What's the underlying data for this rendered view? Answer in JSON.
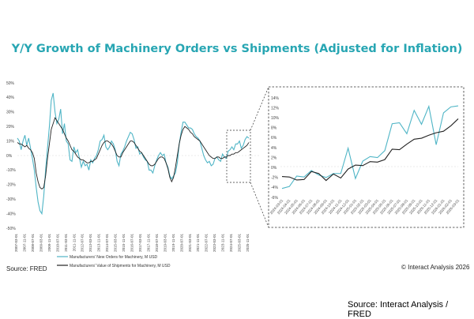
{
  "title": "Y/Y Growth of Machinery Orders vs Shipments (Adjusted for Inflation)",
  "source_left": "Source: FRED",
  "credit": "© Interact Analysis 2026",
  "source_bottom": "Source: Interact Analysis / FRED",
  "colors": {
    "orders": "#4fb5c6",
    "shipments": "#222222",
    "title": "#28a6b3"
  },
  "chart_data": [
    {
      "type": "line",
      "title": "",
      "xlabel": "",
      "ylabel": "",
      "ylim": [
        -50,
        50
      ],
      "yticks": [
        "50%",
        "40%",
        "30%",
        "20%",
        "10%",
        "0%",
        "-10%",
        "-20%",
        "-30%",
        "-40%",
        "-50%"
      ],
      "x_tick_labels": [
        "2007-03-01",
        "2007-11-01",
        "2008-07-01",
        "2009-03-01",
        "2009-11-01",
        "2010-07-01",
        "2011-03-01",
        "2011-11-01",
        "2012-07-01",
        "2013-03-01",
        "2013-11-01",
        "2014-07-01",
        "2015-03-01",
        "2015-11-01",
        "2016-07-01",
        "2017-03-01",
        "2017-11-01",
        "2018-07-01",
        "2019-03-01",
        "2019-11-01",
        "2020-07-01",
        "2021-03-01",
        "2021-11-01",
        "2022-07-01",
        "2023-03-01",
        "2023-11-01",
        "2024-07-01",
        "2025-03-01",
        "2025-11-01"
      ],
      "legend_position": "bottom-left",
      "series": [
        {
          "name": "Manufacturers' New Orders for Machinery, M USD",
          "values": [
            12,
            10,
            4,
            10,
            14,
            7,
            12,
            5,
            -2,
            -10,
            -22,
            -32,
            -38,
            -40,
            -28,
            -10,
            5,
            20,
            38,
            43,
            30,
            22,
            25,
            32,
            15,
            22,
            10,
            8,
            -3,
            -4,
            6,
            2,
            4,
            -2,
            -8,
            -4,
            -7,
            -6,
            -10,
            -3,
            -5,
            -2,
            0,
            4,
            10,
            11,
            14,
            6,
            4,
            6,
            10,
            8,
            4,
            -4,
            -7,
            1,
            3,
            6,
            10,
            13,
            16,
            15,
            11,
            5,
            6,
            1,
            2,
            -1,
            -3,
            -4,
            -10,
            -10,
            -12,
            -7,
            -3,
            0,
            2,
            0,
            1,
            -5,
            -8,
            -14,
            -16,
            -14,
            -12,
            -5,
            8,
            16,
            23,
            23,
            21,
            19,
            19,
            18,
            15,
            13,
            12,
            10,
            5,
            0,
            -3,
            -5,
            -4,
            -7,
            -6,
            -2,
            -1,
            -3,
            -4,
            1,
            -1,
            -2,
            3,
            4,
            6,
            4,
            8,
            8,
            10,
            5,
            7,
            11,
            13,
            12
          ]
        },
        {
          "name": "Manufacturers' Value of Shipments for Machinery, M USD",
          "values": [
            9,
            8,
            8,
            7,
            6,
            7,
            5,
            4,
            2,
            -2,
            -12,
            -18,
            -22,
            -23,
            -22,
            -14,
            -2,
            8,
            18,
            22,
            26,
            24,
            22,
            20,
            18,
            15,
            12,
            10,
            7,
            4,
            3,
            1,
            -1,
            -2,
            -3,
            -3,
            -4,
            -5,
            -5,
            -4,
            -4,
            -3,
            -2,
            1,
            4,
            7,
            9,
            10,
            10,
            9,
            8,
            6,
            3,
            0,
            -1,
            -1,
            2,
            4,
            6,
            8,
            10,
            10,
            9,
            7,
            5,
            3,
            2,
            0,
            -2,
            -4,
            -6,
            -7,
            -7,
            -6,
            -4,
            -2,
            -1,
            -1,
            -2,
            -5,
            -9,
            -15,
            -18,
            -15,
            -8,
            0,
            8,
            14,
            18,
            20,
            19,
            18,
            16,
            15,
            13,
            12,
            11,
            10,
            8,
            6,
            4,
            2,
            0,
            -1,
            -2,
            -2,
            -1,
            -1,
            -2,
            -2,
            -1,
            -1,
            0,
            0,
            1,
            1,
            2,
            2,
            3,
            4,
            5,
            6,
            7,
            9
          ]
        }
      ]
    },
    {
      "type": "line",
      "title": "",
      "xlabel": "",
      "ylabel": "",
      "ylim": [
        -6,
        14
      ],
      "yticks": [
        "14%",
        "12%",
        "10%",
        "8%",
        "6%",
        "4%",
        "2%",
        "0%",
        "-2%",
        "-4%",
        "-6%"
      ],
      "categories": [
        "2024-03-01",
        "2024-04-01",
        "2024-05-01",
        "2024-06-01",
        "2024-07-01",
        "2024-08-01",
        "2024-09-01",
        "2024-10-01",
        "2024-11-01",
        "2024-12-01",
        "2025-01-01",
        "2025-02-01",
        "2025-03-01",
        "2025-04-01",
        "2025-05-01",
        "2025-06-01",
        "2025-07-01",
        "2025-08-01",
        "2025-09-01",
        "2025-10-01",
        "2025-11-01",
        "2025-12-01",
        "2026-01-01",
        "2026-02-01",
        "2026-03-01"
      ],
      "series": [
        {
          "name": "Manufacturers' New Orders for Machinery, M USD",
          "values": [
            -4.2,
            -3.8,
            -1.7,
            -1.9,
            -0.6,
            -1.5,
            -2.0,
            -1.2,
            -1.2,
            3.9,
            -2.2,
            1.3,
            2.2,
            2.0,
            3.4,
            8.8,
            9.0,
            6.8,
            11.5,
            8.7,
            12.3,
            4.6,
            11.0,
            12.2,
            12.4
          ]
        },
        {
          "name": "Manufacturers' Value of Shipments for Machinery, M USD",
          "values": [
            -1.8,
            -1.9,
            -2.5,
            -2.4,
            -0.8,
            -1.2,
            -2.6,
            -1.3,
            -2.1,
            -0.3,
            0.5,
            0.4,
            1.2,
            1.1,
            1.6,
            3.7,
            3.6,
            4.7,
            5.7,
            5.9,
            6.5,
            7.0,
            7.3,
            8.4,
            9.8
          ]
        }
      ]
    }
  ]
}
